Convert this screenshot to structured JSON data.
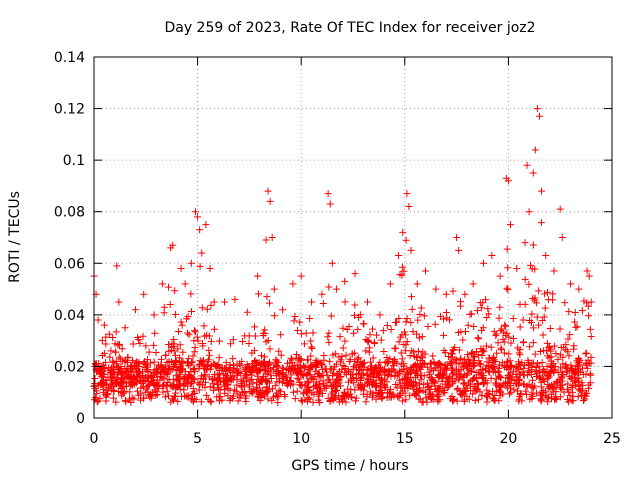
{
  "chart_data": {
    "type": "scatter",
    "title": "Day 259 of 2023, Rate Of TEC Index for receiver joz2",
    "xlabel": "GPS time / hours",
    "ylabel": "ROTI / TECUs",
    "xlim": [
      0,
      25
    ],
    "ylim": [
      0,
      0.14
    ],
    "xticks": [
      0,
      5,
      10,
      15,
      20,
      25
    ],
    "yticks": [
      0,
      0.02,
      0.04,
      0.06,
      0.08,
      0.1,
      0.12,
      0.14
    ],
    "xtick_labels": [
      "0",
      "5",
      "10",
      "15",
      "20",
      "25"
    ],
    "ytick_labels": [
      "0",
      "0.02",
      "0.04",
      "0.06",
      "0.08",
      "0.1",
      "0.12",
      "0.14"
    ],
    "grid": true,
    "marker": "+",
    "series_color": "#ff0000",
    "series": [
      {
        "name": "ROTI",
        "points": [
          [
            0.0,
            0.055
          ],
          [
            0.1,
            0.048
          ],
          [
            0.2,
            0.038
          ],
          [
            0.4,
            0.03
          ],
          [
            0.5,
            0.036
          ],
          [
            1.1,
            0.059
          ],
          [
            1.2,
            0.045
          ],
          [
            1.5,
            0.035
          ],
          [
            2.0,
            0.042
          ],
          [
            2.4,
            0.048
          ],
          [
            2.9,
            0.04
          ],
          [
            3.3,
            0.052
          ],
          [
            3.7,
            0.066
          ],
          [
            3.8,
            0.067
          ],
          [
            4.2,
            0.058
          ],
          [
            4.4,
            0.052
          ],
          [
            4.7,
            0.06
          ],
          [
            4.9,
            0.08
          ],
          [
            5.0,
            0.078
          ],
          [
            5.1,
            0.073
          ],
          [
            5.2,
            0.064
          ],
          [
            5.4,
            0.075
          ],
          [
            5.6,
            0.058
          ],
          [
            5.8,
            0.045
          ],
          [
            6.3,
            0.045
          ],
          [
            6.8,
            0.046
          ],
          [
            7.4,
            0.041
          ],
          [
            7.9,
            0.055
          ],
          [
            8.4,
            0.088
          ],
          [
            8.5,
            0.084
          ],
          [
            8.6,
            0.07
          ],
          [
            8.7,
            0.05
          ],
          [
            9.1,
            0.042
          ],
          [
            9.6,
            0.052
          ],
          [
            10.0,
            0.055
          ],
          [
            10.5,
            0.045
          ],
          [
            11.0,
            0.048
          ],
          [
            11.3,
            0.087
          ],
          [
            11.4,
            0.083
          ],
          [
            11.5,
            0.06
          ],
          [
            11.7,
            0.05
          ],
          [
            12.1,
            0.053
          ],
          [
            12.6,
            0.056
          ],
          [
            13.2,
            0.045
          ],
          [
            13.8,
            0.04
          ],
          [
            14.3,
            0.052
          ],
          [
            14.7,
            0.063
          ],
          [
            14.9,
            0.072
          ],
          [
            15.1,
            0.087
          ],
          [
            15.2,
            0.082
          ],
          [
            15.3,
            0.065
          ],
          [
            15.6,
            0.052
          ],
          [
            16.0,
            0.057
          ],
          [
            16.5,
            0.05
          ],
          [
            17.0,
            0.048
          ],
          [
            17.5,
            0.07
          ],
          [
            17.6,
            0.065
          ],
          [
            17.9,
            0.048
          ],
          [
            18.3,
            0.052
          ],
          [
            18.8,
            0.06
          ],
          [
            19.2,
            0.063
          ],
          [
            19.6,
            0.055
          ],
          [
            19.9,
            0.093
          ],
          [
            20.0,
            0.092
          ],
          [
            20.1,
            0.075
          ],
          [
            20.4,
            0.058
          ],
          [
            20.8,
            0.068
          ],
          [
            20.9,
            0.098
          ],
          [
            21.0,
            0.08
          ],
          [
            21.2,
            0.095
          ],
          [
            21.3,
            0.104
          ],
          [
            21.4,
            0.12
          ],
          [
            21.5,
            0.117
          ],
          [
            21.6,
            0.088
          ],
          [
            21.8,
            0.063
          ],
          [
            22.2,
            0.057
          ],
          [
            22.5,
            0.081
          ],
          [
            22.6,
            0.07
          ],
          [
            23.0,
            0.052
          ],
          [
            23.4,
            0.05
          ],
          [
            23.8,
            0.057
          ],
          [
            23.9,
            0.055
          ],
          [
            24.0,
            0.045
          ]
        ]
      }
    ]
  }
}
